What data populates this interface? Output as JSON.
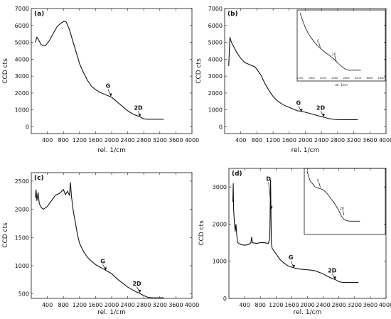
{
  "chart_data": [
    {
      "type": "line",
      "panel_label": "(a)",
      "xlabel": "rel. 1/cm",
      "ylabel": "CCD cts",
      "xlim": [
        0,
        4000
      ],
      "ylim": [
        -400,
        7000
      ],
      "xticks": [
        400,
        800,
        1200,
        1600,
        2000,
        2400,
        2800,
        3200,
        3600,
        4000
      ],
      "yticks": [
        0,
        1000,
        2000,
        3000,
        4000,
        5000,
        6000,
        7000
      ],
      "x": [
        100,
        140,
        180,
        250,
        350,
        450,
        550,
        650,
        750,
        820,
        870,
        900,
        950,
        1000,
        1050,
        1100,
        1150,
        1200,
        1300,
        1400,
        1500,
        1600,
        1700,
        1800,
        1900,
        2000,
        2100,
        2200,
        2300,
        2400,
        2500,
        2600,
        2700,
        2760,
        2800,
        2900,
        3000,
        3100,
        3200,
        3300
      ],
      "y": [
        5000,
        5300,
        5150,
        4850,
        4800,
        5100,
        5550,
        5950,
        6150,
        6250,
        6200,
        6050,
        5750,
        5350,
        4950,
        4550,
        4150,
        3750,
        3200,
        2750,
        2400,
        2200,
        2050,
        1950,
        1850,
        1750,
        1550,
        1350,
        1150,
        950,
        800,
        680,
        600,
        520,
        470,
        450,
        450,
        450,
        450,
        450
      ],
      "annotations": [
        {
          "text": "G",
          "x": 1980,
          "y": 1800
        },
        {
          "text": "2D",
          "x": 2700,
          "y": 590
        }
      ]
    },
    {
      "type": "line",
      "panel_label": "(b)",
      "xlabel": "rel. 1/cm",
      "ylabel": "CCD cts",
      "xlim": [
        0,
        4000
      ],
      "ylim": [
        -400,
        7000
      ],
      "xticks": [
        400,
        800,
        1200,
        1600,
        2000,
        2400,
        2800,
        3200,
        3600,
        4000
      ],
      "yticks": [
        0,
        1000,
        2000,
        3000,
        4000,
        5000,
        6000,
        7000
      ],
      "x": [
        100,
        130,
        160,
        200,
        300,
        400,
        500,
        600,
        700,
        750,
        800,
        900,
        1000,
        1100,
        1200,
        1300,
        1400,
        1500,
        1600,
        1700,
        1800,
        1900,
        2000,
        2100,
        2200,
        2300,
        2400,
        2500,
        2600,
        2700,
        2800,
        3000,
        3200,
        3300
      ],
      "y": [
        3600,
        5300,
        5050,
        4850,
        4400,
        4050,
        3800,
        3700,
        3600,
        3550,
        3400,
        3050,
        2550,
        2150,
        1800,
        1550,
        1380,
        1250,
        1150,
        1050,
        950,
        920,
        860,
        800,
        730,
        670,
        600,
        540,
        480,
        440,
        430,
        420,
        420,
        420
      ],
      "annotations": [
        {
          "text": "G",
          "x": 1900,
          "y": 880
        },
        {
          "text": "2D",
          "x": 2450,
          "y": 590
        }
      ],
      "inset": {
        "xlim": [
          1200,
          4000
        ],
        "xticks": [
          1200,
          1600,
          2000,
          2400,
          2800,
          3200,
          3600,
          4000
        ],
        "xlabel": "rel. 1/cm",
        "x": [
          1200,
          1300,
          1400,
          1500,
          1600,
          1700,
          1800,
          1900,
          2000,
          2100,
          2200,
          2300,
          2400,
          2500,
          2600,
          2700,
          2800,
          2900,
          3000,
          3100,
          3200,
          3300
        ],
        "y": [
          100,
          86,
          74,
          65,
          58,
          52,
          46,
          42,
          38,
          34,
          31,
          27,
          23,
          18,
          14,
          10,
          7,
          6,
          6,
          6,
          6,
          6
        ],
        "annotations": [
          {
            "text": "G",
            "x": 1900,
            "y": 42
          },
          {
            "text": "2D",
            "x": 2450,
            "y": 20
          }
        ]
      }
    },
    {
      "type": "line",
      "panel_label": "(c)",
      "xlabel": "rel. 1/cm",
      "ylabel": "CCD cts",
      "xlim": [
        0,
        4000
      ],
      "ylim": [
        420,
        2650
      ],
      "xticks": [
        400,
        800,
        1200,
        1600,
        2000,
        2400,
        2800,
        3200,
        3600,
        4000
      ],
      "yticks": [
        500,
        1000,
        1500,
        2000,
        2500
      ],
      "x": [
        100,
        120,
        140,
        170,
        200,
        250,
        300,
        400,
        500,
        600,
        700,
        800,
        850,
        900,
        950,
        975,
        1000,
        1050,
        1100,
        1150,
        1200,
        1300,
        1400,
        1500,
        1600,
        1700,
        1800,
        1900,
        2000,
        2100,
        2200,
        2300,
        2400,
        2500,
        2600,
        2700,
        2800,
        2900,
        3000,
        3100,
        3200,
        3300
      ],
      "y": [
        2200,
        2350,
        2150,
        2300,
        2100,
        2030,
        2000,
        2050,
        2150,
        2250,
        2280,
        2350,
        2260,
        2320,
        2250,
        2480,
        2230,
        1950,
        1750,
        1550,
        1400,
        1250,
        1150,
        1080,
        1020,
        980,
        940,
        900,
        860,
        790,
        730,
        680,
        620,
        580,
        540,
        510,
        470,
        440,
        430,
        430,
        430,
        430
      ],
      "annotations": [
        {
          "text": "G",
          "x": 1850,
          "y": 920
        },
        {
          "text": "2D",
          "x": 2700,
          "y": 520
        }
      ]
    },
    {
      "type": "line",
      "panel_label": "(d)",
      "xlabel": "rel. 1/cm",
      "ylabel": "CCD cts",
      "xlim": [
        0,
        4000
      ],
      "ylim": [
        0,
        3500
      ],
      "xticks": [
        400,
        800,
        1200,
        1600,
        2000,
        2400,
        2800,
        3200,
        3600,
        4000
      ],
      "yticks": [
        0,
        1000,
        2000,
        3000
      ],
      "x": [
        100,
        110,
        120,
        140,
        160,
        180,
        200,
        220,
        300,
        400,
        500,
        560,
        580,
        600,
        700,
        800,
        900,
        1000,
        1040,
        1060,
        1080,
        1100,
        1200,
        1300,
        1400,
        1500,
        1600,
        1700,
        1800,
        1900,
        2000,
        2100,
        2200,
        2300,
        2400,
        2500,
        2600,
        2700,
        2800,
        2900,
        3000,
        3100,
        3200,
        3300
      ],
      "y": [
        2600,
        3100,
        2400,
        2050,
        1800,
        2000,
        1700,
        1500,
        1450,
        1430,
        1450,
        1500,
        1650,
        1500,
        1480,
        1500,
        1500,
        1480,
        1600,
        3200,
        1500,
        1350,
        1200,
        1050,
        950,
        880,
        840,
        810,
        790,
        780,
        770,
        760,
        740,
        700,
        660,
        600,
        550,
        510,
        450,
        430,
        430,
        430,
        430,
        430
      ],
      "annotations": [
        {
          "text": "D",
          "x": 1080,
          "y": 2400
        },
        {
          "text": "G",
          "x": 1650,
          "y": 820
        },
        {
          "text": "2D",
          "x": 2700,
          "y": 510
        }
      ],
      "inset": {
        "xlim": [
          1200,
          4000
        ],
        "x": [
          1200,
          1260,
          1320,
          1400,
          1500,
          1600,
          1700,
          1800,
          1900,
          2000,
          2100,
          2200,
          2300,
          2400,
          2500,
          2600,
          2700,
          2800,
          2900,
          3000,
          3100,
          3200
        ],
        "y": [
          100,
          90,
          82,
          78,
          72,
          70,
          69,
          67,
          63,
          58,
          51,
          45,
          38,
          30,
          20,
          14,
          12,
          11,
          11,
          11,
          11,
          11
        ],
        "annotations": [
          {
            "text": "G",
            "x": 1700,
            "y": 70
          },
          {
            "text": "2D",
            "x": 2600,
            "y": 20
          }
        ]
      }
    }
  ]
}
